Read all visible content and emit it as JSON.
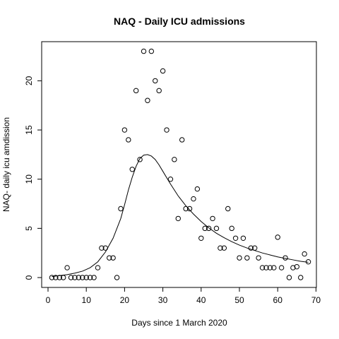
{
  "chart_data": {
    "type": "scatter",
    "title": "NAQ - Daily ICU admissions",
    "xlabel": "Days since 1 March 2020",
    "ylabel": "NAQ- daily icu amdission",
    "xlim": [
      0,
      70
    ],
    "ylim": [
      0,
      23
    ],
    "xticks": [
      0,
      10,
      20,
      30,
      40,
      50,
      60,
      70
    ],
    "yticks": [
      0,
      5,
      10,
      15,
      20
    ],
    "grid": false,
    "legend": "none",
    "points": [
      {
        "x": 1,
        "y": 0
      },
      {
        "x": 2,
        "y": 0
      },
      {
        "x": 3,
        "y": 0
      },
      {
        "x": 4,
        "y": 0
      },
      {
        "x": 5,
        "y": 1
      },
      {
        "x": 6,
        "y": 0
      },
      {
        "x": 7,
        "y": 0
      },
      {
        "x": 8,
        "y": 0
      },
      {
        "x": 9,
        "y": 0
      },
      {
        "x": 10,
        "y": 0
      },
      {
        "x": 11,
        "y": 0
      },
      {
        "x": 12,
        "y": 0
      },
      {
        "x": 13,
        "y": 1
      },
      {
        "x": 14,
        "y": 3
      },
      {
        "x": 15,
        "y": 3
      },
      {
        "x": 16,
        "y": 2
      },
      {
        "x": 17,
        "y": 2
      },
      {
        "x": 18,
        "y": 0
      },
      {
        "x": 19,
        "y": 7
      },
      {
        "x": 20,
        "y": 15
      },
      {
        "x": 21,
        "y": 14
      },
      {
        "x": 22,
        "y": 11
      },
      {
        "x": 23,
        "y": 19
      },
      {
        "x": 24,
        "y": 12
      },
      {
        "x": 25,
        "y": 23
      },
      {
        "x": 26,
        "y": 18
      },
      {
        "x": 27,
        "y": 23
      },
      {
        "x": 28,
        "y": 20
      },
      {
        "x": 29,
        "y": 19
      },
      {
        "x": 30,
        "y": 21
      },
      {
        "x": 31,
        "y": 15
      },
      {
        "x": 32,
        "y": 10
      },
      {
        "x": 33,
        "y": 12
      },
      {
        "x": 34,
        "y": 6
      },
      {
        "x": 35,
        "y": 14
      },
      {
        "x": 36,
        "y": 7
      },
      {
        "x": 37,
        "y": 7
      },
      {
        "x": 38,
        "y": 8
      },
      {
        "x": 39,
        "y": 9
      },
      {
        "x": 40,
        "y": 4
      },
      {
        "x": 41,
        "y": 5
      },
      {
        "x": 42,
        "y": 5
      },
      {
        "x": 43,
        "y": 6
      },
      {
        "x": 44,
        "y": 5
      },
      {
        "x": 45,
        "y": 3
      },
      {
        "x": 46,
        "y": 3
      },
      {
        "x": 47,
        "y": 7
      },
      {
        "x": 48,
        "y": 5
      },
      {
        "x": 49,
        "y": 4
      },
      {
        "x": 50,
        "y": 2
      },
      {
        "x": 51,
        "y": 4
      },
      {
        "x": 52,
        "y": 2
      },
      {
        "x": 53,
        "y": 3
      },
      {
        "x": 54,
        "y": 3
      },
      {
        "x": 55,
        "y": 2
      },
      {
        "x": 56,
        "y": 1
      },
      {
        "x": 57,
        "y": 1
      },
      {
        "x": 58,
        "y": 1
      },
      {
        "x": 59,
        "y": 1
      },
      {
        "x": 60,
        "y": 4.1
      },
      {
        "x": 61,
        "y": 1
      },
      {
        "x": 62,
        "y": 2
      },
      {
        "x": 63,
        "y": 0
      },
      {
        "x": 64,
        "y": 1
      },
      {
        "x": 65,
        "y": 1.1
      },
      {
        "x": 66,
        "y": 0
      },
      {
        "x": 67,
        "y": 2.4
      },
      {
        "x": 68,
        "y": 1.6
      }
    ],
    "fit_curve": {
      "x": [
        1,
        3,
        5,
        7,
        9,
        11,
        13,
        15,
        17,
        19,
        20,
        21,
        22,
        23,
        24,
        25,
        26,
        27,
        28,
        29,
        30,
        32,
        34,
        36,
        38,
        40,
        42,
        44,
        46,
        48,
        50,
        52,
        54,
        56,
        58,
        60,
        62,
        64,
        66,
        68
      ],
      "y": [
        0.1,
        0.2,
        0.3,
        0.45,
        0.65,
        1.0,
        1.6,
        2.6,
        4.0,
        6.0,
        7.4,
        8.9,
        10.2,
        11.3,
        12.1,
        12.45,
        12.5,
        12.35,
        12.0,
        11.45,
        10.8,
        9.5,
        8.3,
        7.3,
        6.45,
        5.7,
        5.05,
        4.5,
        4.05,
        3.65,
        3.3,
        3.0,
        2.75,
        2.5,
        2.3,
        2.1,
        1.95,
        1.8,
        1.65,
        1.55
      ]
    }
  }
}
